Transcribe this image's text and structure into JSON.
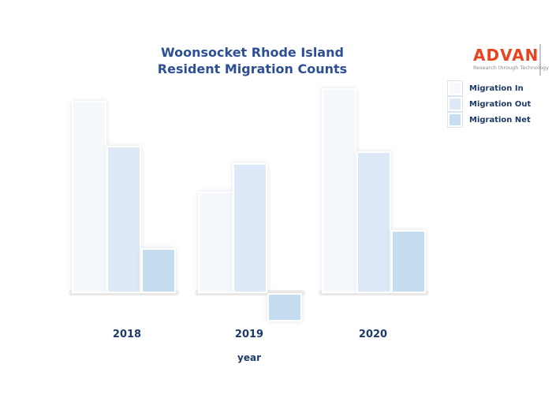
{
  "title": {
    "line1": "Woonsocket Rhode Island",
    "line2": "Resident Migration Counts"
  },
  "logo": {
    "name": "ADVAN",
    "tagline": "Research through Technology",
    "color": "#e8441f"
  },
  "colors": {
    "background": "#ffffff",
    "title_text": "#2d4f96",
    "axis_text": "#1e3a66",
    "bar_edge": "#ffffff"
  },
  "chart_data": {
    "type": "bar",
    "title": "Woonsocket Rhode Island Resident Migration Counts",
    "categories": [
      "2018",
      "2019",
      "2020"
    ],
    "series": [
      {
        "name": "Migration In",
        "color": "#f5f9fd",
        "values": [
          2440,
          1290,
          2600
        ]
      },
      {
        "name": "Migration Out",
        "color": "#dde9f6",
        "values": [
          1870,
          1650,
          1800
        ]
      },
      {
        "name": "Migration Net",
        "color": "#c5dcf1",
        "values": [
          570,
          -360,
          800
        ]
      }
    ],
    "xlabel": "year",
    "ylabel": "",
    "ylim": [
      -500,
      2700
    ],
    "grid": false,
    "y_axis_visible": false,
    "legend_position": "upper right"
  }
}
